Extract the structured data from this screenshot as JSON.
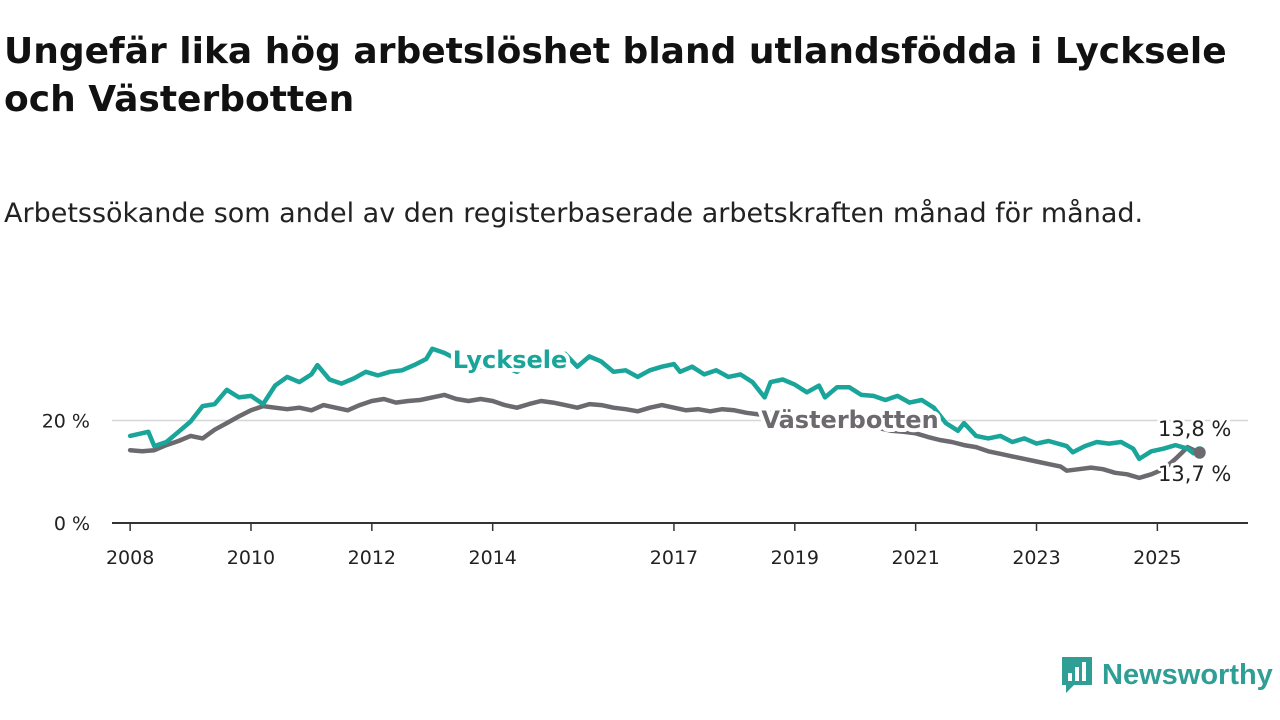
{
  "header": {
    "title": "Ungefär lika hög arbetslöshet bland utlandsfödda i Lycksele och Västerbotten",
    "subtitle": "Arbetssökande som andel av den registerbaserade arbetskraften månad för månad."
  },
  "brand": {
    "name": "Newsworthy",
    "icon": "newsworthy-logo-icon",
    "color": "#2f9e95"
  },
  "chart_data": {
    "type": "line",
    "xlim": [
      2007.7,
      2026.5
    ],
    "ylim": [
      0,
      40
    ],
    "grid": "horizontal",
    "legend": "direct-labels",
    "y_ticks": [
      {
        "value": 0,
        "label": "0 %"
      },
      {
        "value": 20,
        "label": "20 %"
      }
    ],
    "x_ticks": [
      {
        "value": 2008,
        "label": "2008"
      },
      {
        "value": 2010,
        "label": "2010"
      },
      {
        "value": 2012,
        "label": "2012"
      },
      {
        "value": 2014,
        "label": "2014"
      },
      {
        "value": 2017,
        "label": "2017"
      },
      {
        "value": 2019,
        "label": "2019"
      },
      {
        "value": 2021,
        "label": "2021"
      },
      {
        "value": 2023,
        "label": "2023"
      },
      {
        "value": 2025,
        "label": "2025"
      }
    ],
    "series": [
      {
        "name": "Lycksele",
        "color": "#1aa59a",
        "end_label": "13,8 %",
        "points": [
          [
            2008.0,
            17.0
          ],
          [
            2008.3,
            17.8
          ],
          [
            2008.4,
            15.0
          ],
          [
            2008.6,
            15.8
          ],
          [
            2008.8,
            17.8
          ],
          [
            2009.0,
            19.8
          ],
          [
            2009.2,
            22.8
          ],
          [
            2009.4,
            23.2
          ],
          [
            2009.6,
            26.0
          ],
          [
            2009.8,
            24.5
          ],
          [
            2010.0,
            24.8
          ],
          [
            2010.2,
            23.2
          ],
          [
            2010.4,
            26.8
          ],
          [
            2010.6,
            28.5
          ],
          [
            2010.8,
            27.5
          ],
          [
            2011.0,
            29.0
          ],
          [
            2011.1,
            30.8
          ],
          [
            2011.3,
            28.0
          ],
          [
            2011.5,
            27.2
          ],
          [
            2011.7,
            28.2
          ],
          [
            2011.9,
            29.5
          ],
          [
            2012.1,
            28.8
          ],
          [
            2012.3,
            29.5
          ],
          [
            2012.5,
            29.8
          ],
          [
            2012.7,
            30.8
          ],
          [
            2012.9,
            32.0
          ],
          [
            2013.0,
            34.0
          ],
          [
            2013.2,
            33.2
          ],
          [
            2013.4,
            32.0
          ],
          [
            2013.6,
            29.8
          ],
          [
            2013.8,
            30.5
          ],
          [
            2014.0,
            31.0
          ],
          [
            2014.2,
            30.5
          ],
          [
            2014.4,
            29.5
          ],
          [
            2014.6,
            31.0
          ],
          [
            2014.8,
            31.8
          ],
          [
            2015.0,
            32.5
          ],
          [
            2015.2,
            33.0
          ],
          [
            2015.4,
            30.5
          ],
          [
            2015.6,
            32.5
          ],
          [
            2015.8,
            31.5
          ],
          [
            2016.0,
            29.5
          ],
          [
            2016.2,
            29.8
          ],
          [
            2016.4,
            28.5
          ],
          [
            2016.6,
            29.8
          ],
          [
            2016.8,
            30.5
          ],
          [
            2017.0,
            31.0
          ],
          [
            2017.1,
            29.5
          ],
          [
            2017.3,
            30.5
          ],
          [
            2017.5,
            29.0
          ],
          [
            2017.7,
            29.8
          ],
          [
            2017.9,
            28.5
          ],
          [
            2018.1,
            29.0
          ],
          [
            2018.3,
            27.5
          ],
          [
            2018.5,
            24.5
          ],
          [
            2018.6,
            27.5
          ],
          [
            2018.8,
            28.0
          ],
          [
            2019.0,
            27.0
          ],
          [
            2019.2,
            25.5
          ],
          [
            2019.4,
            26.8
          ],
          [
            2019.5,
            24.5
          ],
          [
            2019.7,
            26.5
          ],
          [
            2019.9,
            26.5
          ],
          [
            2020.1,
            25.0
          ],
          [
            2020.3,
            24.8
          ],
          [
            2020.5,
            24.0
          ],
          [
            2020.7,
            24.8
          ],
          [
            2020.9,
            23.5
          ],
          [
            2021.1,
            24.0
          ],
          [
            2021.3,
            22.5
          ],
          [
            2021.5,
            19.5
          ],
          [
            2021.7,
            18.0
          ],
          [
            2021.8,
            19.5
          ],
          [
            2022.0,
            17.0
          ],
          [
            2022.2,
            16.5
          ],
          [
            2022.4,
            17.0
          ],
          [
            2022.6,
            15.8
          ],
          [
            2022.8,
            16.5
          ],
          [
            2023.0,
            15.5
          ],
          [
            2023.2,
            16.0
          ],
          [
            2023.5,
            15.0
          ],
          [
            2023.6,
            13.8
          ],
          [
            2023.8,
            15.0
          ],
          [
            2024.0,
            15.8
          ],
          [
            2024.2,
            15.5
          ],
          [
            2024.4,
            15.8
          ],
          [
            2024.6,
            14.5
          ],
          [
            2024.7,
            12.5
          ],
          [
            2024.9,
            14.0
          ],
          [
            2025.1,
            14.5
          ],
          [
            2025.3,
            15.2
          ],
          [
            2025.5,
            14.5
          ],
          [
            2025.6,
            13.6
          ],
          [
            2025.7,
            13.8
          ]
        ]
      },
      {
        "name": "Västerbotten",
        "color": "#6c6a6e",
        "end_label": "13,7 %",
        "points": [
          [
            2008.0,
            14.2
          ],
          [
            2008.2,
            14.0
          ],
          [
            2008.4,
            14.2
          ],
          [
            2008.6,
            15.2
          ],
          [
            2008.8,
            16.0
          ],
          [
            2009.0,
            17.0
          ],
          [
            2009.2,
            16.5
          ],
          [
            2009.4,
            18.2
          ],
          [
            2009.6,
            19.5
          ],
          [
            2009.8,
            20.8
          ],
          [
            2010.0,
            22.0
          ],
          [
            2010.2,
            22.8
          ],
          [
            2010.4,
            22.5
          ],
          [
            2010.6,
            22.2
          ],
          [
            2010.8,
            22.5
          ],
          [
            2011.0,
            22.0
          ],
          [
            2011.2,
            23.0
          ],
          [
            2011.4,
            22.5
          ],
          [
            2011.6,
            22.0
          ],
          [
            2011.8,
            23.0
          ],
          [
            2012.0,
            23.8
          ],
          [
            2012.2,
            24.2
          ],
          [
            2012.4,
            23.5
          ],
          [
            2012.6,
            23.8
          ],
          [
            2012.8,
            24.0
          ],
          [
            2013.0,
            24.5
          ],
          [
            2013.2,
            25.0
          ],
          [
            2013.4,
            24.2
          ],
          [
            2013.6,
            23.8
          ],
          [
            2013.8,
            24.2
          ],
          [
            2014.0,
            23.8
          ],
          [
            2014.2,
            23.0
          ],
          [
            2014.4,
            22.5
          ],
          [
            2014.6,
            23.2
          ],
          [
            2014.8,
            23.8
          ],
          [
            2015.0,
            23.5
          ],
          [
            2015.2,
            23.0
          ],
          [
            2015.4,
            22.5
          ],
          [
            2015.6,
            23.2
          ],
          [
            2015.8,
            23.0
          ],
          [
            2016.0,
            22.5
          ],
          [
            2016.2,
            22.2
          ],
          [
            2016.4,
            21.8
          ],
          [
            2016.6,
            22.5
          ],
          [
            2016.8,
            23.0
          ],
          [
            2017.0,
            22.5
          ],
          [
            2017.2,
            22.0
          ],
          [
            2017.4,
            22.2
          ],
          [
            2017.6,
            21.8
          ],
          [
            2017.8,
            22.2
          ],
          [
            2018.0,
            22.0
          ],
          [
            2018.2,
            21.5
          ],
          [
            2018.4,
            21.2
          ],
          [
            2018.6,
            21.5
          ],
          [
            2018.8,
            21.0
          ],
          [
            2019.0,
            20.8
          ],
          [
            2019.2,
            20.5
          ],
          [
            2019.4,
            20.5
          ],
          [
            2019.6,
            20.0
          ],
          [
            2019.8,
            19.8
          ],
          [
            2020.0,
            19.5
          ],
          [
            2020.2,
            19.0
          ],
          [
            2020.4,
            18.5
          ],
          [
            2020.6,
            18.0
          ],
          [
            2020.8,
            17.8
          ],
          [
            2021.0,
            17.5
          ],
          [
            2021.2,
            16.8
          ],
          [
            2021.4,
            16.2
          ],
          [
            2021.6,
            15.8
          ],
          [
            2021.8,
            15.2
          ],
          [
            2022.0,
            14.8
          ],
          [
            2022.2,
            14.0
          ],
          [
            2022.4,
            13.5
          ],
          [
            2022.6,
            13.0
          ],
          [
            2022.8,
            12.5
          ],
          [
            2023.0,
            12.0
          ],
          [
            2023.2,
            11.5
          ],
          [
            2023.4,
            11.0
          ],
          [
            2023.5,
            10.2
          ],
          [
            2023.7,
            10.5
          ],
          [
            2023.9,
            10.8
          ],
          [
            2024.1,
            10.5
          ],
          [
            2024.3,
            9.8
          ],
          [
            2024.5,
            9.5
          ],
          [
            2024.7,
            8.8
          ],
          [
            2024.9,
            9.5
          ],
          [
            2025.1,
            10.5
          ],
          [
            2025.3,
            12.5
          ],
          [
            2025.5,
            14.8
          ],
          [
            2025.7,
            13.7
          ]
        ]
      }
    ]
  }
}
